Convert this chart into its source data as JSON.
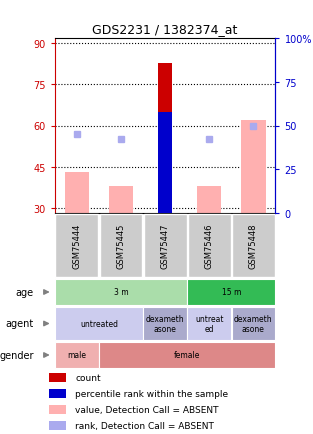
{
  "title": "GDS2231 / 1382374_at",
  "samples": [
    "GSM75444",
    "GSM75445",
    "GSM75447",
    "GSM75446",
    "GSM75448"
  ],
  "ylim_left": [
    28,
    92
  ],
  "ylim_right": [
    0,
    100
  ],
  "yticks_left": [
    30,
    45,
    60,
    75,
    90
  ],
  "yticks_right": [
    0,
    25,
    50,
    75,
    100
  ],
  "ytick_labels_right": [
    "0",
    "25",
    "50",
    "75",
    "100%"
  ],
  "count_bar": {
    "sample_idx": 2,
    "value": 83,
    "color": "#cc0000"
  },
  "pct_rank_bar": {
    "sample_idx": 2,
    "value": 65,
    "color": "#0000cc"
  },
  "value_absent_bars": {
    "values": [
      43,
      38,
      null,
      38,
      62
    ],
    "color": "#ffb0b0"
  },
  "rank_absent_dots": {
    "values": [
      57,
      55,
      null,
      55,
      60
    ],
    "color": "#aaaaee"
  },
  "metadata_rows": [
    {
      "label": "age",
      "cells": [
        {
          "text": "3 m",
          "colspan": 3,
          "color": "#aaddaa"
        },
        {
          "text": "15 m",
          "colspan": 2,
          "color": "#33bb55"
        }
      ]
    },
    {
      "label": "agent",
      "cells": [
        {
          "text": "untreated",
          "colspan": 2,
          "color": "#ccccee"
        },
        {
          "text": "dexameth\nasone",
          "colspan": 1,
          "color": "#aaaacc"
        },
        {
          "text": "untreat\ned",
          "colspan": 1,
          "color": "#ccccee"
        },
        {
          "text": "dexameth\nasone",
          "colspan": 1,
          "color": "#aaaacc"
        }
      ]
    },
    {
      "label": "gender",
      "cells": [
        {
          "text": "male",
          "colspan": 1,
          "color": "#f0b0b0"
        },
        {
          "text": "female",
          "colspan": 4,
          "color": "#dd8888"
        }
      ]
    }
  ],
  "legend_items": [
    {
      "color": "#cc0000",
      "label": "count"
    },
    {
      "color": "#0000cc",
      "label": "percentile rank within the sample"
    },
    {
      "color": "#ffb0b0",
      "label": "value, Detection Call = ABSENT"
    },
    {
      "color": "#aaaaee",
      "label": "rank, Detection Call = ABSENT"
    }
  ],
  "sample_box_color": "#cccccc",
  "left_axis_color": "#cc0000",
  "right_axis_color": "#0000cc",
  "fig_width": 3.13,
  "fig_height": 4.35,
  "dpi": 100
}
